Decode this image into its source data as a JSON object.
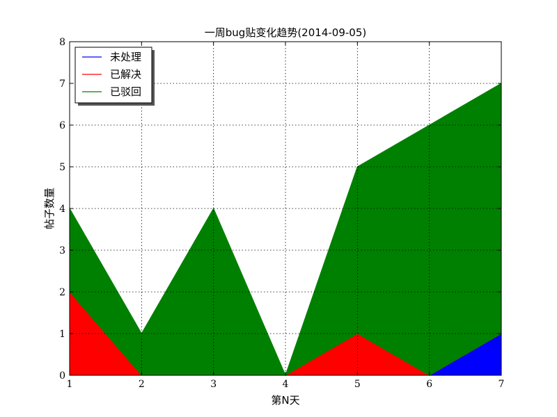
{
  "chart_data": {
    "type": "area",
    "stacked": true,
    "title": "一周bug贴变化趋势(2014-09-05)",
    "xlabel": "第N天",
    "ylabel": "帖子数量",
    "x": [
      1,
      2,
      3,
      4,
      5,
      6,
      7
    ],
    "xlim": [
      1,
      7
    ],
    "ylim": [
      0,
      8
    ],
    "xticks": [
      "1",
      "2",
      "3",
      "4",
      "5",
      "6",
      "7"
    ],
    "yticks": [
      "0",
      "1",
      "2",
      "3",
      "4",
      "5",
      "6",
      "7",
      "8"
    ],
    "grid": true,
    "legend_position": "top-left",
    "series": [
      {
        "name": "未处理",
        "color": "#0000ff",
        "values": [
          0,
          0,
          0,
          0,
          0,
          0,
          1
        ]
      },
      {
        "name": "已解决",
        "color": "#ff0000",
        "values": [
          2,
          0,
          0,
          0,
          1,
          0,
          0
        ]
      },
      {
        "name": "已驳回",
        "color": "#008000",
        "values": [
          2,
          1,
          4,
          0,
          4,
          6,
          6
        ]
      }
    ]
  }
}
